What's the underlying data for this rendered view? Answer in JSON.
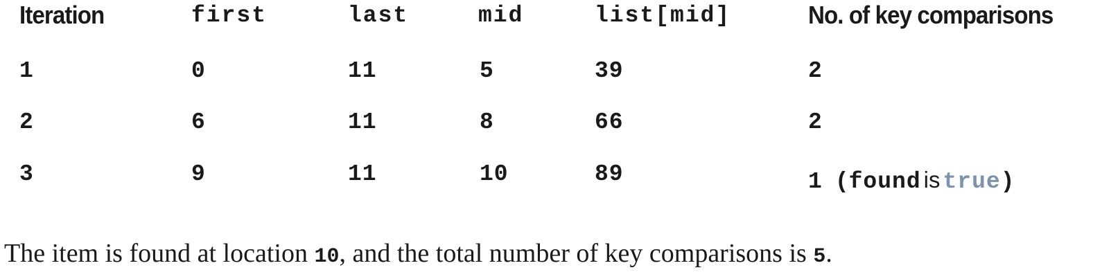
{
  "table": {
    "headers": {
      "iteration": "Iteration",
      "first": "first",
      "last": "last",
      "mid": "mid",
      "list_mid": "list[mid]",
      "comparisons": "No. of key comparisons"
    },
    "rows": [
      {
        "iteration": "1",
        "first": "0",
        "last": "11",
        "mid": "5",
        "list_mid": "39",
        "comparisons": "2"
      },
      {
        "iteration": "2",
        "first": "6",
        "last": "11",
        "mid": "8",
        "list_mid": "66",
        "comparisons": "2"
      },
      {
        "iteration": "3",
        "first": "9",
        "last": "11",
        "mid": "10",
        "list_mid": "89",
        "comparisons": "1"
      }
    ],
    "found_note": {
      "open_paren": "(",
      "found": "found",
      "is": "is",
      "true": "true",
      "close_paren": ")"
    }
  },
  "footer": {
    "text_before_location": "The item is found at location ",
    "location": "10",
    "text_middle": ", and the total number of key comparisons is ",
    "total": "5",
    "text_end": "."
  },
  "colors": {
    "text": "#1a1a1a",
    "keyword_true": "#7a93ae"
  }
}
